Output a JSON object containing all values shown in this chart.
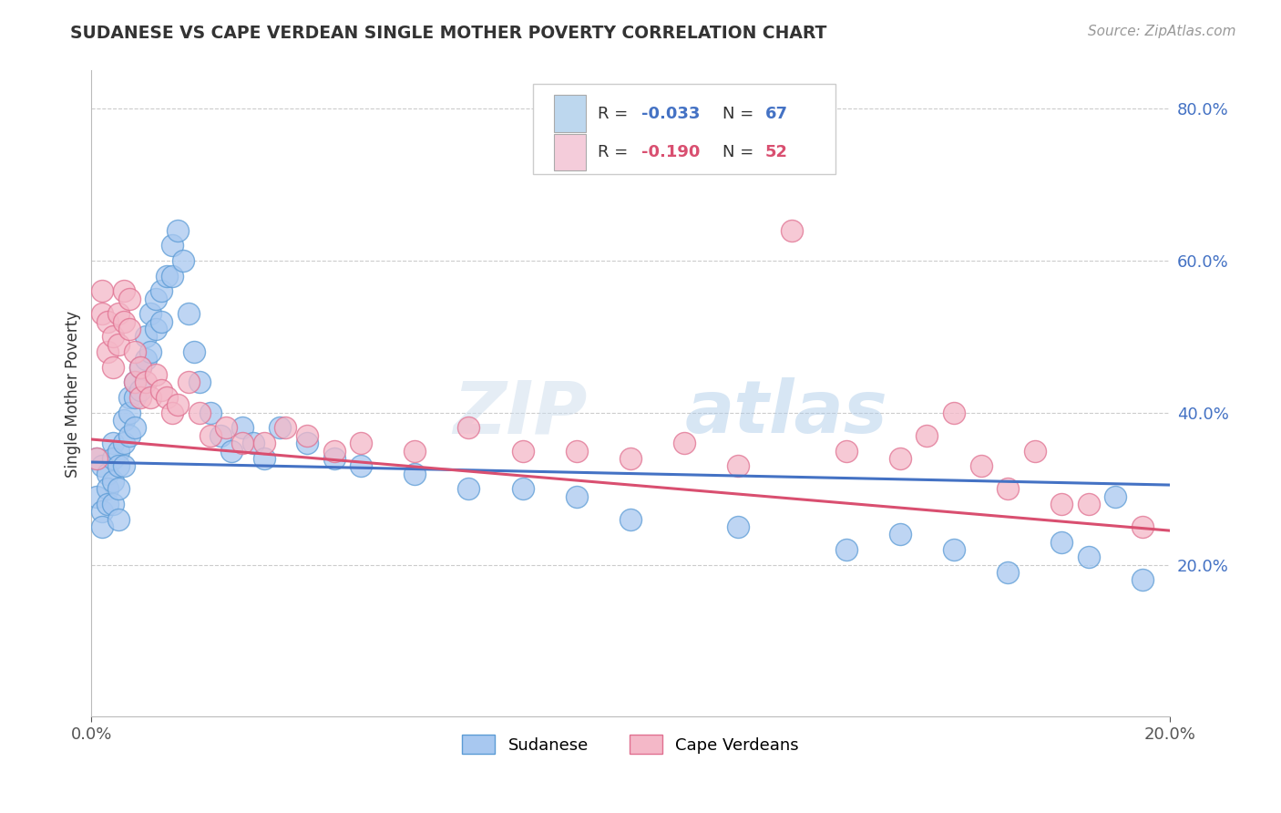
{
  "title": "SUDANESE VS CAPE VERDEAN SINGLE MOTHER POVERTY CORRELATION CHART",
  "source": "Source: ZipAtlas.com",
  "ylabel": "Single Mother Poverty",
  "xlim": [
    0.0,
    0.2
  ],
  "ylim": [
    0.0,
    0.85
  ],
  "yticks": [
    0.2,
    0.4,
    0.6,
    0.8
  ],
  "ytick_labels": [
    "20.0%",
    "40.0%",
    "60.0%",
    "80.0%"
  ],
  "xtick_labels": [
    "0.0%",
    "20.0%"
  ],
  "legend_r1": "-0.033",
  "legend_n1": "67",
  "legend_r2": "-0.190",
  "legend_n2": "52",
  "color_blue": "#A8C8F0",
  "color_pink": "#F4B8C8",
  "color_blue_edge": "#5B9BD5",
  "color_pink_edge": "#E07090",
  "color_blue_line": "#4472C4",
  "color_pink_line": "#D94F70",
  "color_legend_blue_box": "#BDD7EE",
  "color_legend_pink_box": "#F4CCDA",
  "sudanese_x": [
    0.001,
    0.001,
    0.002,
    0.002,
    0.002,
    0.003,
    0.003,
    0.003,
    0.004,
    0.004,
    0.004,
    0.004,
    0.005,
    0.005,
    0.005,
    0.005,
    0.006,
    0.006,
    0.006,
    0.007,
    0.007,
    0.007,
    0.008,
    0.008,
    0.008,
    0.009,
    0.009,
    0.01,
    0.01,
    0.011,
    0.011,
    0.012,
    0.012,
    0.013,
    0.013,
    0.014,
    0.015,
    0.015,
    0.016,
    0.017,
    0.018,
    0.019,
    0.02,
    0.022,
    0.024,
    0.026,
    0.028,
    0.03,
    0.032,
    0.035,
    0.04,
    0.045,
    0.05,
    0.06,
    0.07,
    0.08,
    0.09,
    0.1,
    0.12,
    0.14,
    0.15,
    0.16,
    0.17,
    0.18,
    0.185,
    0.19,
    0.195
  ],
  "sudanese_y": [
    0.34,
    0.29,
    0.33,
    0.27,
    0.25,
    0.32,
    0.3,
    0.28,
    0.36,
    0.34,
    0.31,
    0.28,
    0.35,
    0.33,
    0.3,
    0.26,
    0.39,
    0.36,
    0.33,
    0.42,
    0.4,
    0.37,
    0.44,
    0.42,
    0.38,
    0.46,
    0.43,
    0.5,
    0.47,
    0.53,
    0.48,
    0.55,
    0.51,
    0.56,
    0.52,
    0.58,
    0.62,
    0.58,
    0.64,
    0.6,
    0.53,
    0.48,
    0.44,
    0.4,
    0.37,
    0.35,
    0.38,
    0.36,
    0.34,
    0.38,
    0.36,
    0.34,
    0.33,
    0.32,
    0.3,
    0.3,
    0.29,
    0.26,
    0.25,
    0.22,
    0.24,
    0.22,
    0.19,
    0.23,
    0.21,
    0.29,
    0.18
  ],
  "capeverdean_x": [
    0.001,
    0.002,
    0.002,
    0.003,
    0.003,
    0.004,
    0.004,
    0.005,
    0.005,
    0.006,
    0.006,
    0.007,
    0.007,
    0.008,
    0.008,
    0.009,
    0.009,
    0.01,
    0.011,
    0.012,
    0.013,
    0.014,
    0.015,
    0.016,
    0.018,
    0.02,
    0.022,
    0.025,
    0.028,
    0.032,
    0.036,
    0.04,
    0.045,
    0.05,
    0.06,
    0.07,
    0.08,
    0.09,
    0.1,
    0.11,
    0.12,
    0.13,
    0.14,
    0.15,
    0.155,
    0.16,
    0.165,
    0.17,
    0.175,
    0.18,
    0.185,
    0.195
  ],
  "capeverdean_y": [
    0.34,
    0.56,
    0.53,
    0.52,
    0.48,
    0.5,
    0.46,
    0.53,
    0.49,
    0.56,
    0.52,
    0.55,
    0.51,
    0.48,
    0.44,
    0.46,
    0.42,
    0.44,
    0.42,
    0.45,
    0.43,
    0.42,
    0.4,
    0.41,
    0.44,
    0.4,
    0.37,
    0.38,
    0.36,
    0.36,
    0.38,
    0.37,
    0.35,
    0.36,
    0.35,
    0.38,
    0.35,
    0.35,
    0.34,
    0.36,
    0.33,
    0.64,
    0.35,
    0.34,
    0.37,
    0.4,
    0.33,
    0.3,
    0.35,
    0.28,
    0.28,
    0.25
  ]
}
